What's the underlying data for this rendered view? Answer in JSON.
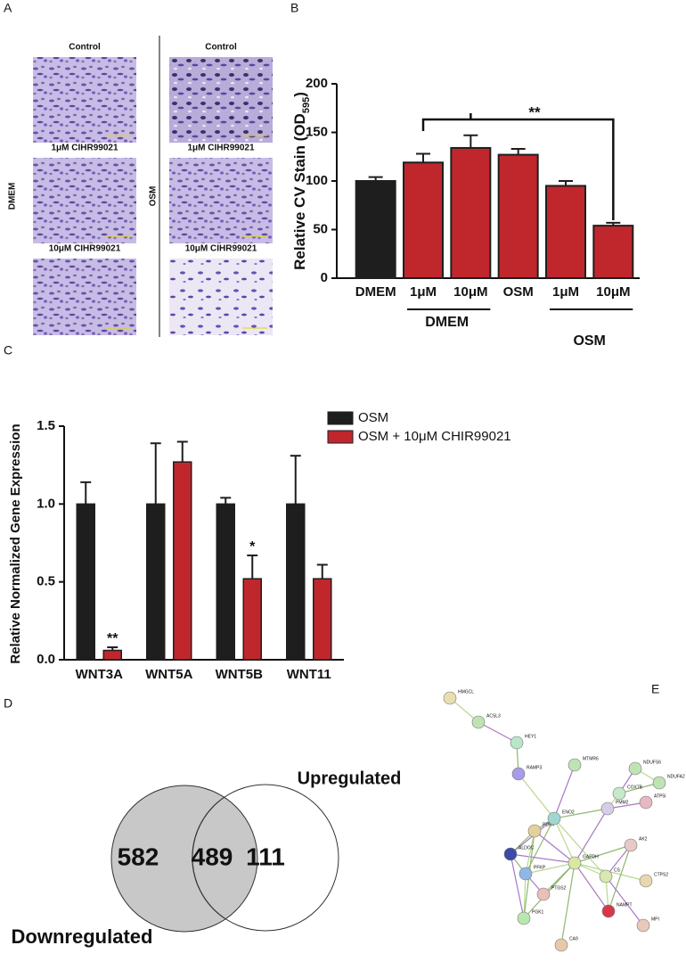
{
  "panel_letters": [
    "A",
    "B",
    "C",
    "D",
    "E"
  ],
  "panel_a": {
    "columns": [
      {
        "label": "DMEM",
        "images": [
          "Control",
          "1μM CIHR99021",
          "10μM CIHR99021"
        ]
      },
      {
        "label": "OSM",
        "images": [
          "Control",
          "1μM CIHR99021",
          "10μM CIHR99021"
        ]
      }
    ]
  },
  "chart_data": [
    {
      "type": "bar",
      "y_label": "Relative CV Stain (OD",
      "y_label_sub": "595",
      "y_label_end": ")",
      "categories": [
        "DMEM",
        "1μM",
        "10μM",
        "OSM",
        "1μM",
        "10μM"
      ],
      "values": [
        100,
        119,
        134,
        127,
        95,
        54
      ],
      "errors": [
        4,
        9,
        13,
        6,
        5,
        3
      ],
      "colors": [
        "#1e1e1e",
        "#c0272d",
        "#c0272d",
        "#c0272d",
        "#c0272d",
        "#c0272d"
      ],
      "group_labels": [
        "DMEM",
        "OSM"
      ],
      "annotations": [
        "**"
      ],
      "ylim": [
        0,
        200
      ],
      "yticks": [
        0,
        50,
        100,
        150,
        200
      ]
    },
    {
      "type": "bar",
      "y_label": "Relative Normalized Gene Expression",
      "categories": [
        "WNT3A",
        "WNT5A",
        "WNT5B",
        "WNT11"
      ],
      "series": [
        {
          "name": "OSM",
          "color": "#1e1e1e",
          "values": [
            1,
            1,
            1,
            1
          ],
          "errors": [
            0.14,
            0.39,
            0.04,
            0.31
          ]
        },
        {
          "name": "OSM + 10μM CHIR99021",
          "color": "#c0272d",
          "values": [
            0.06,
            1.27,
            0.52,
            0.52
          ],
          "errors": [
            0.02,
            0.13,
            0.15,
            0.09
          ]
        }
      ],
      "annotations": [
        "**",
        "*"
      ],
      "ylim": [
        0,
        1.5
      ],
      "yticks": [
        {
          "value": 0,
          "label": "0.0"
        },
        0.5,
        {
          "value": 1,
          "label": "1.0"
        },
        1.5
      ],
      "legend": "top-right"
    }
  ],
  "panel_d": {
    "left_only": 582,
    "both": 489,
    "right_only": 111,
    "right_label": "Upregulated",
    "left_label": "Downregulated"
  },
  "panel_e": {
    "nodes": [
      "HMGCL",
      "ACSL3",
      "HEY1",
      "RAMP3",
      "MTMR6",
      "NDUFS6",
      "NDUFA2",
      "COX7B",
      "PMM2",
      "ATP5I",
      "PDK4",
      "ENO2",
      "GAPDH",
      "AK2",
      "CS",
      "CTPS2",
      "NAMPT",
      "MPI",
      "PTGS2",
      "CA9",
      "PFKP",
      "ALDOC",
      "PGK1"
    ]
  }
}
